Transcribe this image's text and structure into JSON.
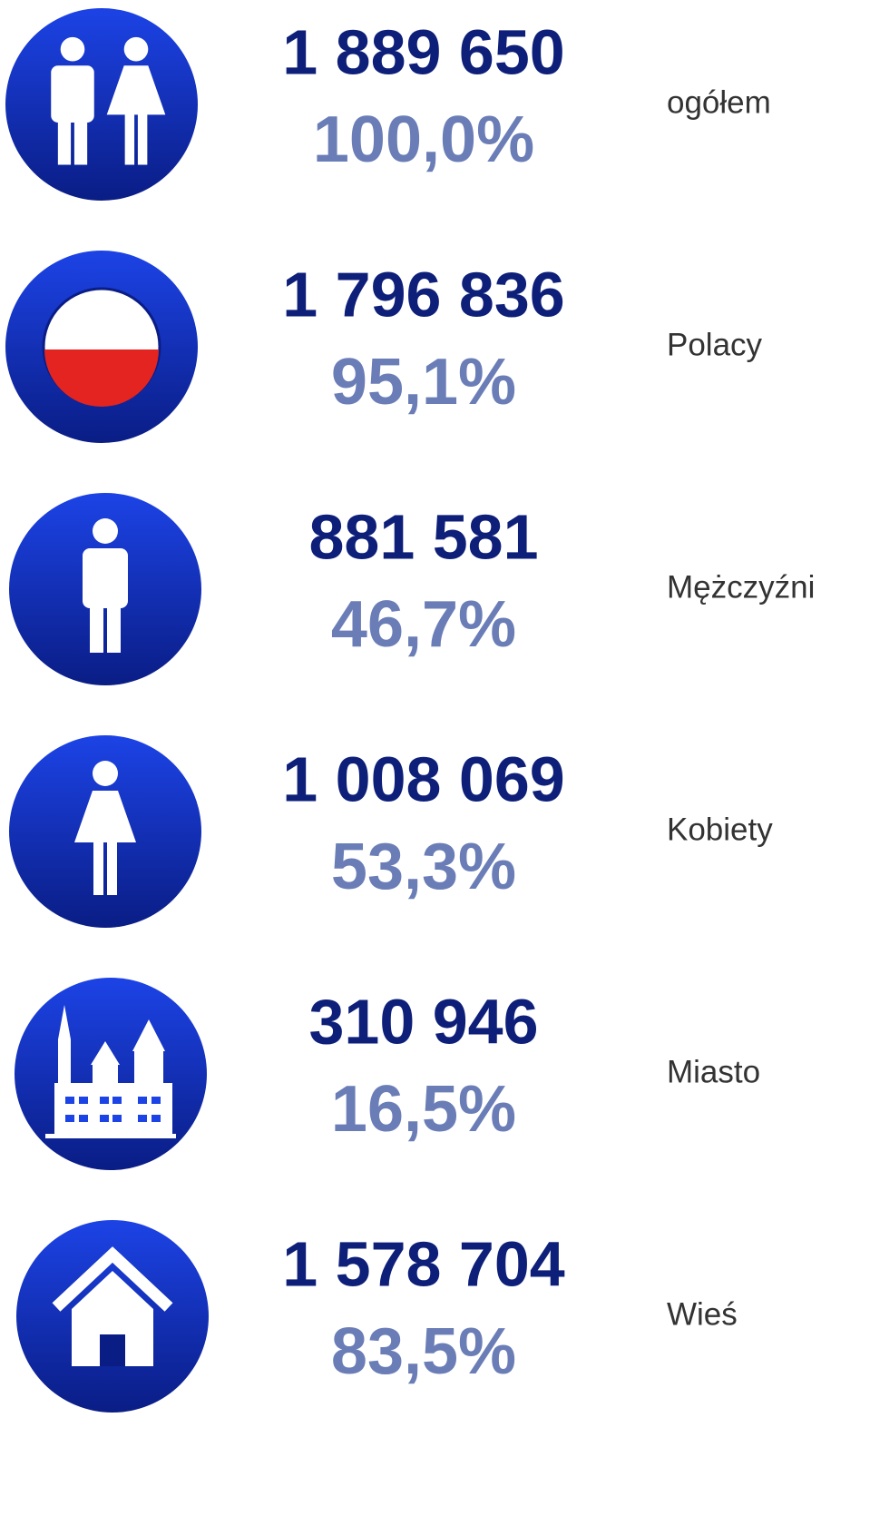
{
  "rows": [
    {
      "count": "1 889 650",
      "percent": "100,0%",
      "label": "ogółem"
    },
    {
      "count": "1 796 836",
      "percent": "95,1%",
      "label": "Polacy"
    },
    {
      "count": "881 581",
      "percent": "46,7%",
      "label": "Mężczyźni"
    },
    {
      "count": "1 008 069",
      "percent": "53,3%",
      "label": "Kobiety"
    },
    {
      "count": "310 946",
      "percent": "16,5%",
      "label": "Miasto"
    },
    {
      "count": "1 578 704",
      "percent": "83,5%",
      "label": "Wieś"
    }
  ]
}
